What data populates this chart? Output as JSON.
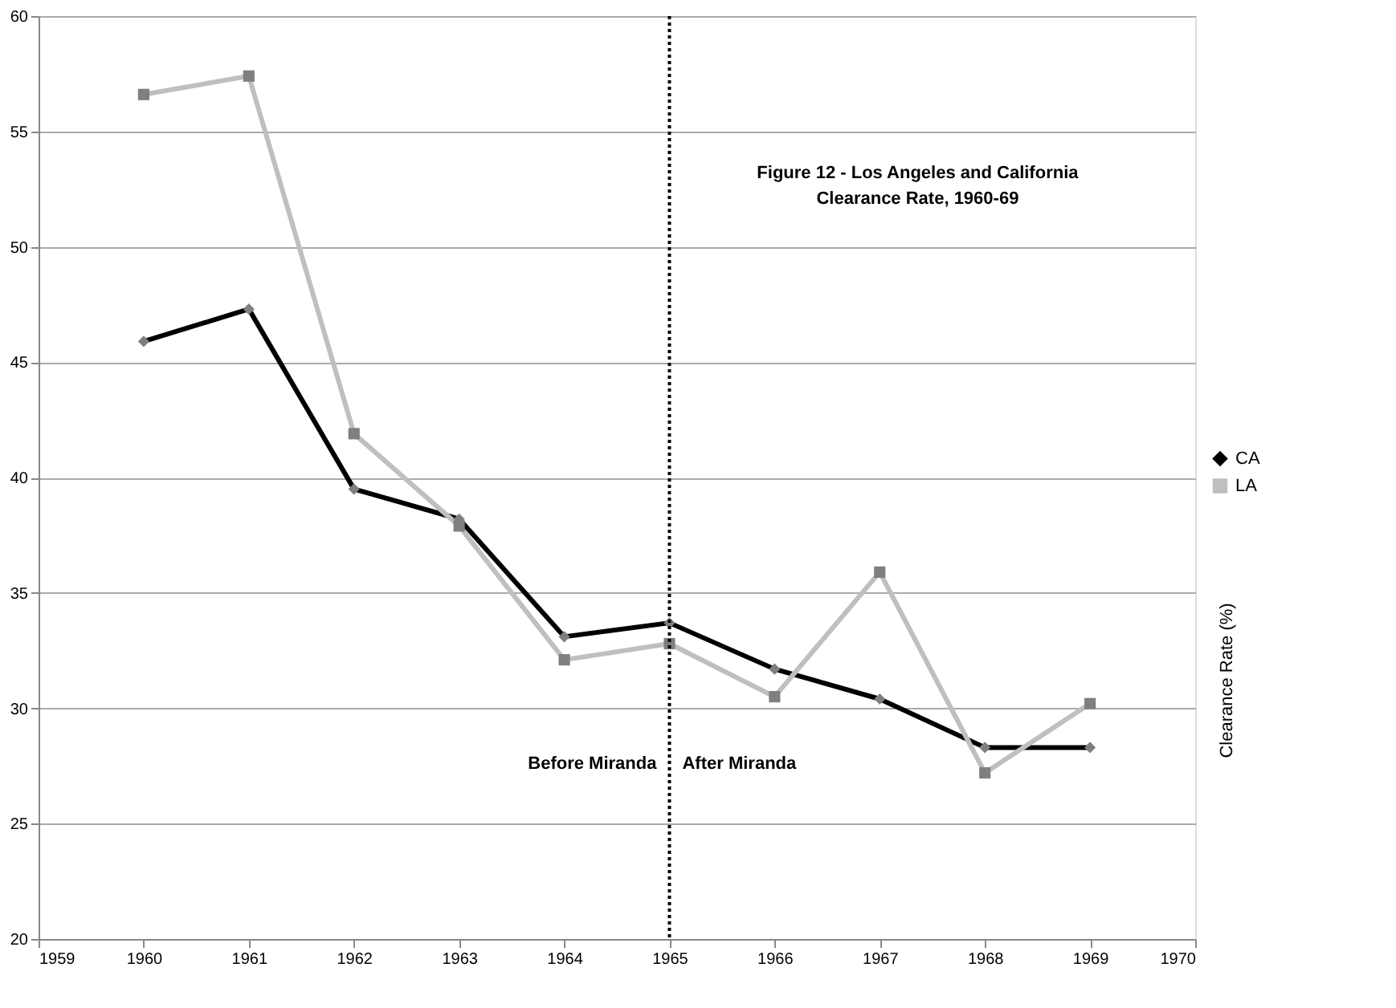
{
  "chart_data": {
    "type": "line",
    "title": "Figure 12 - Los Angeles and California\nClearance Rate, 1960-69",
    "ylabel": "Clearance Rate (%)",
    "x": [
      1960,
      1961,
      1962,
      1963,
      1964,
      1965,
      1966,
      1967,
      1968,
      1969
    ],
    "series": [
      {
        "name": "CA",
        "color": "#000000",
        "marker": "diamond",
        "values": [
          45.9,
          47.3,
          39.5,
          38.2,
          33.1,
          33.7,
          31.7,
          30.4,
          28.3,
          28.3
        ]
      },
      {
        "name": "LA",
        "color": "#bfbfbf",
        "marker": "square",
        "values": [
          56.6,
          57.4,
          41.9,
          37.9,
          32.1,
          32.8,
          30.5,
          35.9,
          27.2,
          30.2
        ]
      }
    ],
    "xlim": [
      1959,
      1970
    ],
    "xticks": [
      1959,
      1960,
      1961,
      1962,
      1963,
      1964,
      1965,
      1966,
      1967,
      1968,
      1969,
      1970
    ],
    "ylim": [
      20,
      60
    ],
    "yticks": [
      20,
      25,
      30,
      35,
      40,
      45,
      50,
      55,
      60
    ],
    "ref_lines": [
      {
        "axis": "x",
        "value": 1965,
        "color": "#000000",
        "line_style": "dotted"
      }
    ],
    "annotations": [
      "Before Miranda",
      "After Miranda"
    ],
    "grid": "y",
    "legend": "right",
    "line_style": "solid"
  }
}
